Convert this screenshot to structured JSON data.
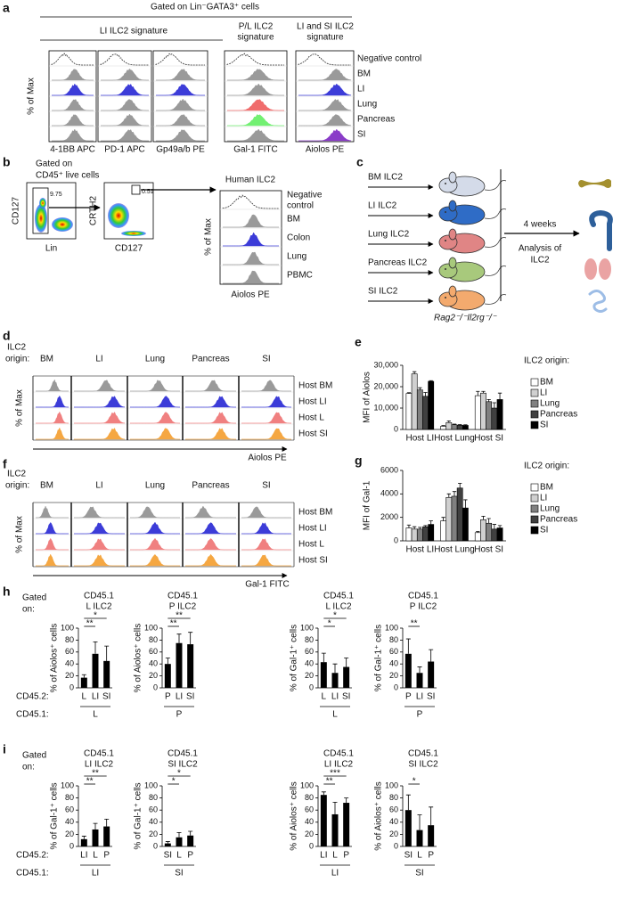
{
  "panel_a": {
    "label": "a",
    "gating": "Gated on Lin⁻GATA3⁺ cells",
    "groups": [
      [
        "LI ILC2 signature"
      ],
      [
        "P/L ILC2",
        "signature"
      ],
      [
        "LI and SI ILC2",
        "signature"
      ]
    ],
    "ylabel": "% of Max",
    "markers": [
      "4-1BB APC",
      "PD-1 APC",
      "Gp49a/b PE",
      "Gal-1 FITC",
      "Aiolos PE"
    ],
    "rows": [
      "Negative control",
      "BM",
      "LI",
      "Lung",
      "Pancreas",
      "SI"
    ]
  },
  "panel_b": {
    "label": "b",
    "gating": [
      "Gated on",
      "CD45⁺ live cells"
    ],
    "plot1": {
      "y": "CD127",
      "x": "Lin",
      "gate": "9.75"
    },
    "plot2": {
      "y": "CRTH2",
      "x": "CD127",
      "gate": "0.51"
    },
    "title": "Human ILC2",
    "ylabel": "% of Max",
    "rows": [
      [
        "Negative",
        "control"
      ],
      [
        "BM"
      ],
      [
        "Colon"
      ],
      [
        "Lung"
      ],
      [
        "PBMC"
      ]
    ],
    "marker": "Aiolos PE"
  },
  "panel_c": {
    "label": "c",
    "donors": [
      "BM ILC2",
      "LI ILC2",
      "Lung ILC2",
      "Pancreas ILC2",
      "SI ILC2"
    ],
    "time": "4 weeks",
    "readout": [
      "Analysis of",
      "ILC2"
    ],
    "host": "Rag2⁻/⁻Il2rg⁻/⁻"
  },
  "panel_d": {
    "label": "d",
    "heading": [
      "ILC2",
      "origin:"
    ],
    "origins": [
      "BM",
      "LI",
      "Lung",
      "Pancreas",
      "SI"
    ],
    "hosts": [
      "Host BM",
      "Host LI",
      "Host L",
      "Host SI"
    ],
    "ylabel": "% of Max",
    "marker": "Aiolos PE"
  },
  "panel_e": {
    "label": "e"
  },
  "panel_f": {
    "label": "f",
    "heading": [
      "ILC2",
      "origin:"
    ],
    "origins": [
      "BM",
      "LI",
      "Lung",
      "Pancreas",
      "SI"
    ],
    "hosts": [
      "Host BM",
      "Host LI",
      "Host L",
      "Host SI"
    ],
    "ylabel": "% of Max",
    "marker": "Gal-1 FITC"
  },
  "panel_g": {
    "label": "g"
  },
  "panel_h": {
    "label": "h",
    "gated": [
      "Gated",
      "on:"
    ],
    "rows": [
      "CD45.2:",
      "CD45.1:"
    ]
  },
  "panel_i": {
    "label": "i",
    "gated": [
      "Gated",
      "on:"
    ],
    "rows": [
      "CD45.2:",
      "CD45.1:"
    ]
  },
  "chart_data": [
    {
      "type": "bar",
      "ylabel": "MFI of Aiolos",
      "legend_title": "ILC2 origin:",
      "categories": [
        "Host LI",
        "Host Lung",
        "Host SI"
      ],
      "ylim": [
        0,
        30000
      ],
      "yticks": [
        0,
        {
          "value": 10000,
          "label": "10,000"
        },
        {
          "value": 20000,
          "label": "20,000"
        },
        {
          "value": 30000,
          "label": "30,000"
        }
      ],
      "series": [
        {
          "name": "BM",
          "color": "#ffffff",
          "values": [
            16800,
            1500,
            15800
          ],
          "errors": [
            400,
            300,
            2000
          ]
        },
        {
          "name": "LI",
          "color": "#d0d0d0",
          "values": [
            26000,
            3200,
            17000
          ],
          "errors": [
            1000,
            800,
            800
          ]
        },
        {
          "name": "Lung",
          "color": "#808080",
          "values": [
            18500,
            2200,
            13000
          ],
          "errors": [
            1000,
            300,
            1000
          ]
        },
        {
          "name": "Pancreas",
          "color": "#404040",
          "values": [
            15500,
            2000,
            10000
          ],
          "errors": [
            1800,
            300,
            2500
          ]
        },
        {
          "name": "SI",
          "color": "#000000",
          "values": [
            22500,
            1900,
            14000
          ],
          "errors": [
            300,
            300,
            3000
          ]
        }
      ]
    },
    {
      "type": "bar",
      "ylabel": "MFI of Gal-1",
      "legend_title": "ILC2 origin:",
      "categories": [
        "Host LI",
        "Host Lung",
        "Host SI"
      ],
      "ylim": [
        0,
        6000
      ],
      "yticks": [
        0,
        2000,
        4000,
        6000
      ],
      "series": [
        {
          "name": "BM",
          "color": "#ffffff",
          "values": [
            1100,
            1700,
            700
          ],
          "errors": [
            250,
            300,
            100
          ]
        },
        {
          "name": "LI",
          "color": "#d0d0d0",
          "values": [
            1000,
            3700,
            1800
          ],
          "errors": [
            200,
            300,
            300
          ]
        },
        {
          "name": "Lung",
          "color": "#808080",
          "values": [
            1000,
            3800,
            1500
          ],
          "errors": [
            150,
            400,
            400
          ]
        },
        {
          "name": "Pancreas",
          "color": "#404040",
          "values": [
            1200,
            4500,
            1000
          ],
          "errors": [
            100,
            400,
            400
          ]
        },
        {
          "name": "SI",
          "color": "#000000",
          "values": [
            1400,
            2800,
            1100
          ],
          "errors": [
            300,
            700,
            200
          ]
        }
      ]
    },
    {
      "type": "bar",
      "title": [
        "CD45.1",
        "L ILC2"
      ],
      "ylabel": "% of Aiolos⁺ cells",
      "categories": [
        "L",
        "LI",
        "SI"
      ],
      "values": [
        17,
        57,
        45
      ],
      "errors": [
        5,
        20,
        25
      ],
      "group": "L",
      "color": "#000000",
      "ylim": [
        0,
        100
      ],
      "yticks": [
        0,
        20,
        40,
        60,
        80,
        100
      ],
      "significance": [
        {
          "label": "**",
          "pair": [
            "L",
            "LI"
          ]
        },
        {
          "label": "*",
          "pair": [
            "L",
            "SI"
          ]
        }
      ]
    },
    {
      "type": "bar",
      "title": [
        "CD45.1",
        "P ILC2"
      ],
      "ylabel": "% of Aiolos⁺ cells",
      "categories": [
        "P",
        "LI",
        "SI"
      ],
      "values": [
        40,
        75,
        73
      ],
      "errors": [
        10,
        15,
        20
      ],
      "group": "P",
      "color": "#000000",
      "ylim": [
        0,
        100
      ],
      "yticks": [
        0,
        20,
        40,
        60,
        80,
        100
      ],
      "significance": [
        {
          "label": "**",
          "pair": [
            "P",
            "LI"
          ]
        },
        {
          "label": "**",
          "pair": [
            "P",
            "SI"
          ]
        }
      ]
    },
    {
      "type": "bar",
      "title": [
        "CD45.1",
        "L ILC2"
      ],
      "ylabel": "% of Gal-1⁺ cells",
      "categories": [
        "L",
        "LI",
        "SI"
      ],
      "values": [
        43,
        25,
        35
      ],
      "errors": [
        15,
        15,
        15
      ],
      "group": "L",
      "color": "#000000",
      "ylim": [
        0,
        100
      ],
      "yticks": [
        0,
        20,
        40,
        60,
        80,
        100
      ],
      "significance": [
        {
          "label": "*",
          "pair": [
            "L",
            "LI"
          ]
        },
        {
          "label": "*",
          "pair": [
            "L",
            "SI"
          ]
        }
      ]
    },
    {
      "type": "bar",
      "title": [
        "CD45.1",
        "P ILC2"
      ],
      "ylabel": "% of Gal-1⁺ cells",
      "categories": [
        "P",
        "LI",
        "SI"
      ],
      "values": [
        57,
        25,
        44
      ],
      "errors": [
        25,
        10,
        20
      ],
      "group": "P",
      "color": "#000000",
      "ylim": [
        0,
        100
      ],
      "yticks": [
        0,
        20,
        40,
        60,
        80,
        100
      ],
      "significance": [
        {
          "label": "**",
          "pair": [
            "P",
            "LI"
          ]
        }
      ]
    },
    {
      "type": "bar",
      "title": [
        "CD45.1",
        "LI ILC2"
      ],
      "ylabel": "% of Gal-1⁺ cells",
      "categories": [
        "LI",
        "L",
        "P"
      ],
      "values": [
        12,
        28,
        33
      ],
      "errors": [
        5,
        10,
        12
      ],
      "group": "LI",
      "color": "#000000",
      "ylim": [
        0,
        100
      ],
      "yticks": [
        0,
        20,
        40,
        60,
        80,
        100
      ],
      "significance": [
        {
          "label": "**",
          "pair": [
            "LI",
            "L"
          ]
        },
        {
          "label": "**",
          "pair": [
            "LI",
            "P"
          ]
        }
      ]
    },
    {
      "type": "bar",
      "title": [
        "CD45.1",
        "SI ILC2"
      ],
      "ylabel": "% of Gal-1⁺ cells",
      "categories": [
        "SI",
        "L",
        "P"
      ],
      "values": [
        5,
        15,
        18
      ],
      "errors": [
        3,
        8,
        7
      ],
      "group": "SI",
      "color": "#000000",
      "ylim": [
        0,
        100
      ],
      "yticks": [
        0,
        20,
        40,
        60,
        80,
        100
      ],
      "significance": [
        {
          "label": "*",
          "pair": [
            "SI",
            "L"
          ]
        },
        {
          "label": "*",
          "pair": [
            "SI",
            "P"
          ]
        }
      ]
    },
    {
      "type": "bar",
      "title": [
        "CD45.1",
        "LI ILC2"
      ],
      "ylabel": "% of Aiolos⁺ cells",
      "categories": [
        "LI",
        "L",
        "P"
      ],
      "values": [
        85,
        53,
        72
      ],
      "errors": [
        5,
        20,
        8
      ],
      "group": "LI",
      "color": "#000000",
      "ylim": [
        0,
        100
      ],
      "yticks": [
        0,
        20,
        40,
        60,
        80,
        100
      ],
      "significance": [
        {
          "label": "**",
          "pair": [
            "LI",
            "L"
          ]
        },
        {
          "label": "***",
          "pair": [
            "LI",
            "P"
          ]
        }
      ]
    },
    {
      "type": "bar",
      "title": [
        "CD45.1",
        "SI ILC2"
      ],
      "ylabel": "% of Aiolos⁺ cells",
      "categories": [
        "SI",
        "L",
        "P"
      ],
      "values": [
        60,
        27,
        35
      ],
      "errors": [
        25,
        25,
        30
      ],
      "group": "SI",
      "color": "#000000",
      "ylim": [
        0,
        100
      ],
      "yticks": [
        0,
        20,
        40,
        60,
        80,
        100
      ],
      "significance": [
        {
          "label": "*",
          "pair": [
            "SI",
            "L"
          ]
        }
      ]
    }
  ]
}
